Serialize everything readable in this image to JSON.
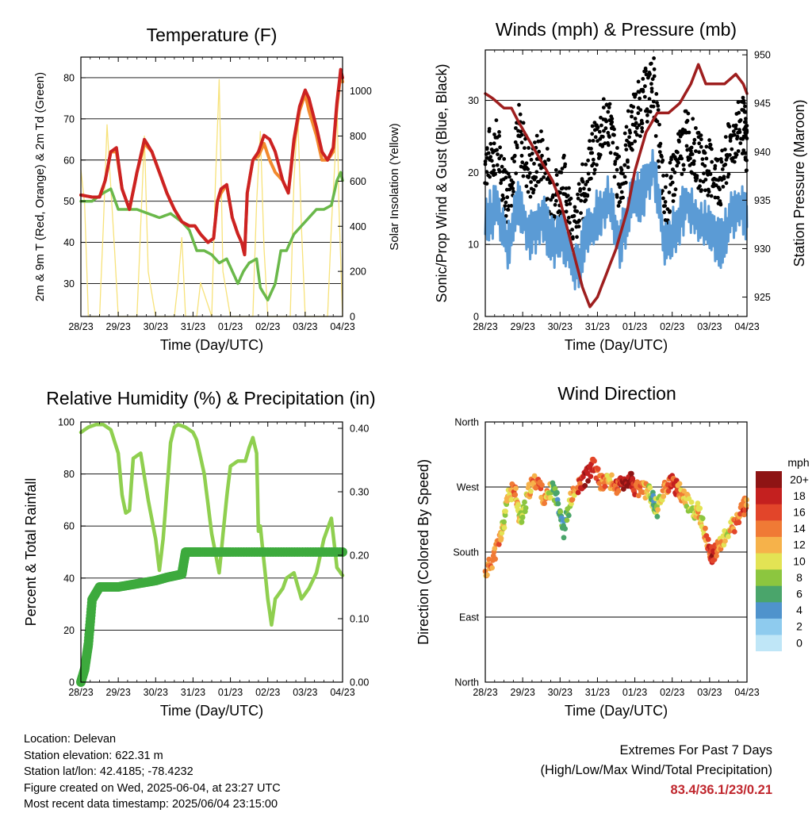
{
  "x_tick_labels": [
    "28/23",
    "29/23",
    "30/23",
    "31/23",
    "01/23",
    "02/23",
    "03/23",
    "04/23"
  ],
  "x_axis_title": "Time (Day/UTC)",
  "colors": {
    "temp_red": "#cc2222",
    "temp_orange": "#f28a2e",
    "dewpoint_green": "#6ab84a",
    "solar_yellow": "#f7e27a",
    "gust_black": "#000000",
    "wind_blue": "#5b9bd5",
    "pressure_maroon": "#9e1e1e",
    "rh_lightgreen": "#8fcf4f",
    "precip_green": "#3daa3d",
    "extremes_red": "#c0262d"
  },
  "panels": {
    "temperature": {
      "title": "Temperature (F)",
      "ylabel_left": "2m & 9m T (Red, Orange) & 2m Td (Green)",
      "ylabel_right": "Solar Insolation (Yellow)",
      "left_ticks": [
        "30",
        "40",
        "50",
        "60",
        "70",
        "80"
      ],
      "right_ticks": [
        "0",
        "200",
        "400",
        "600",
        "800",
        "1000"
      ]
    },
    "winds": {
      "title": "Winds (mph) & Pressure (mb)",
      "ylabel_left": "Sonic/Prop Wind & Gust (Blue, Black)",
      "ylabel_right": "Station Pressure (Maroon)",
      "left_ticks": [
        "0",
        "10",
        "20",
        "30"
      ],
      "right_ticks": [
        "925",
        "930",
        "935",
        "940",
        "945",
        "950"
      ]
    },
    "humidity": {
      "title": "Relative Humidity (%) & Precipitation (in)",
      "ylabel_left": "Percent & Total Rainfall",
      "left_ticks": [
        "0",
        "20",
        "40",
        "60",
        "80",
        "100"
      ],
      "right_ticks": [
        "0.00",
        "0.10",
        "0.20",
        "0.30",
        "0.40"
      ]
    },
    "direction": {
      "title": "Wind Direction",
      "ylabel_left": "Direction (Colored By Speed)",
      "left_ticks": [
        "North",
        "East",
        "South",
        "West",
        "North"
      ],
      "colorbar_title": "mph",
      "colorbar_labels": [
        "0",
        "2",
        "4",
        "6",
        "8",
        "10",
        "12",
        "14",
        "16",
        "18",
        "20+"
      ],
      "colorbar_colors": [
        "#bfe6f7",
        "#8ecbee",
        "#4f93cc",
        "#4aa56b",
        "#8cc63f",
        "#e3e354",
        "#f6b24a",
        "#f07a35",
        "#e2452a",
        "#c4201f",
        "#8e1414"
      ]
    }
  },
  "chart_data": [
    {
      "type": "line",
      "title": "Temperature (F)",
      "xlabel": "Time (Day/UTC)",
      "ylabel": "2m & 9m T (Red, Orange) & 2m Td (Green)",
      "y2label": "Solar Insolation (Yellow)",
      "ylim": [
        22,
        85
      ],
      "y2lim": [
        0,
        1150
      ],
      "xlim": [
        0,
        7
      ],
      "x_ticks": [
        "28/23",
        "29/23",
        "30/23",
        "31/23",
        "01/23",
        "02/23",
        "03/23",
        "04/23"
      ],
      "series": [
        {
          "x": [
            0,
            0.3,
            0.5,
            0.65,
            0.8,
            0.95,
            1.1,
            1.3,
            1.5,
            1.7,
            1.9,
            2.1,
            2.3,
            2.5,
            2.7,
            2.9,
            3.05,
            3.2,
            3.4,
            3.55,
            3.65,
            3.75,
            3.9,
            4.05,
            4.2,
            4.3,
            4.38,
            4.45,
            4.6,
            4.75,
            4.9,
            5.05,
            5.2,
            5.4,
            5.55,
            5.7,
            5.85,
            6.0,
            6.1,
            6.3,
            6.45,
            6.6,
            6.75,
            6.85,
            6.95,
            7.0
          ],
          "y": [
            51.5,
            51,
            51,
            55,
            62,
            63,
            53,
            48,
            57,
            65,
            62,
            57,
            52,
            48,
            45,
            44,
            44,
            42,
            40,
            41,
            50,
            53,
            54,
            46,
            42,
            40,
            37,
            52,
            60,
            62,
            66,
            65,
            62,
            55,
            52,
            65,
            73,
            77,
            75,
            68,
            62,
            60,
            63,
            74,
            82,
            80
          ]
        },
        {
          "x": [
            0,
            0.3,
            0.5,
            0.65,
            0.8,
            0.95,
            1.1,
            1.3,
            1.5,
            1.7,
            1.9,
            2.1,
            2.3,
            2.5,
            2.7,
            2.9,
            3.05,
            3.2,
            3.4,
            3.55,
            3.65,
            3.75,
            3.9,
            4.05,
            4.2,
            4.3,
            4.38,
            4.45,
            4.6,
            4.75,
            4.9,
            5.05,
            5.2,
            5.4,
            5.55,
            5.7,
            5.85,
            6.0,
            6.1,
            6.3,
            6.45,
            6.6,
            6.75,
            6.85,
            6.95,
            7.0
          ],
          "y": [
            51.5,
            51,
            51,
            55,
            62,
            62,
            53,
            48,
            57,
            64,
            62,
            57,
            52,
            48,
            45,
            44,
            44,
            42,
            40,
            41,
            50,
            52,
            54,
            46,
            42,
            40,
            37,
            52,
            60,
            61,
            64,
            60,
            57,
            55,
            52,
            64,
            72,
            76,
            72,
            66,
            60,
            60,
            62,
            73,
            81,
            79
          ]
        },
        {
          "x": [
            0,
            0.3,
            0.6,
            0.8,
            1.0,
            1.2,
            1.5,
            1.8,
            2.1,
            2.4,
            2.7,
            2.9,
            3.1,
            3.3,
            3.5,
            3.7,
            3.9,
            4.05,
            4.2,
            4.35,
            4.5,
            4.7,
            4.8,
            5.0,
            5.1,
            5.2,
            5.35,
            5.5,
            5.7,
            5.9,
            6.1,
            6.3,
            6.5,
            6.7,
            6.85,
            6.95,
            7.0
          ],
          "y": [
            50,
            50,
            52,
            53,
            48,
            48,
            48,
            47,
            46,
            47,
            45,
            43,
            38,
            38,
            37,
            35,
            36,
            33,
            30,
            33,
            35,
            36,
            29,
            26,
            28,
            30,
            38,
            38,
            42,
            44,
            46,
            48,
            48,
            49,
            55,
            57,
            55
          ]
        },
        {
          "x": [
            0,
            0.1,
            0.2,
            0.3,
            0.5,
            0.6,
            0.7,
            0.9,
            1.0,
            1.1,
            1.25,
            1.5,
            1.6,
            1.7,
            1.8,
            2.0,
            2.1,
            2.2,
            2.3,
            2.5,
            2.6,
            2.7,
            2.8,
            3.0,
            3.1,
            3.2,
            3.3,
            3.5,
            3.6,
            3.7,
            3.8,
            4.0,
            4.1,
            4.2,
            4.3,
            4.6,
            4.7,
            4.8,
            4.9,
            5.0,
            5.1,
            5.2,
            5.3,
            5.6,
            5.7,
            5.8,
            5.9,
            6.0,
            6.1,
            6.2,
            6.3,
            6.6,
            6.7,
            6.8,
            6.85,
            6.9,
            7.0
          ],
          "y": [
            650,
            500,
            0,
            0,
            0,
            400,
            850,
            300,
            0,
            0,
            0,
            0,
            400,
            800,
            200,
            0,
            0,
            0,
            0,
            0,
            150,
            350,
            0,
            0,
            0,
            150,
            100,
            0,
            600,
            1050,
            200,
            0,
            0,
            0,
            0,
            0,
            500,
            820,
            300,
            0,
            0,
            0,
            0,
            0,
            600,
            900,
            400,
            0,
            0,
            0,
            0,
            0,
            400,
            700,
            1000,
            500,
            0
          ]
        }
      ]
    },
    {
      "type": "line",
      "title": "Winds (mph) & Pressure (mb)",
      "xlabel": "Time (Day/UTC)",
      "ylabel": "Sonic/Prop Wind & Gust (Blue, Black)",
      "y2label": "Station Pressure (Maroon)",
      "ylim": [
        0,
        37
      ],
      "y2lim": [
        923,
        950.5
      ],
      "xlim": [
        0,
        7
      ],
      "x_ticks": [
        "28/23",
        "29/23",
        "30/23",
        "31/23",
        "01/23",
        "02/23",
        "03/23",
        "04/23"
      ],
      "series": [
        {
          "x": [
            0,
            0.3,
            0.6,
            0.9,
            1.2,
            1.5,
            1.8,
            2.1,
            2.4,
            2.7,
            3.0,
            3.3,
            3.6,
            3.9,
            4.2,
            4.5,
            4.8,
            5.1,
            5.4,
            5.7,
            6.0,
            6.3,
            6.6,
            6.9,
            7.0
          ],
          "y": [
            13,
            15,
            10,
            16,
            11,
            14,
            10,
            11,
            6,
            11,
            14,
            16,
            10,
            16,
            17,
            21,
            10,
            12,
            16,
            13,
            12,
            10,
            14,
            15,
            14
          ]
        },
        {
          "x": [
            0,
            0.3,
            0.6,
            0.9,
            1.2,
            1.5,
            1.8,
            2.1,
            2.4,
            2.7,
            3.0,
            3.3,
            3.6,
            3.9,
            4.2,
            4.5,
            4.8,
            5.1,
            5.4,
            5.7,
            6.0,
            6.3,
            6.6,
            6.9,
            7.0
          ],
          "y": [
            20,
            22,
            15,
            24,
            18,
            21,
            15,
            17,
            10,
            18,
            23,
            26,
            16,
            25,
            28,
            31,
            13,
            19,
            24,
            20,
            19,
            17,
            23,
            25,
            22
          ]
        },
        {
          "x": [
            0,
            0.2,
            0.5,
            0.7,
            0.9,
            1.2,
            1.5,
            1.8,
            2.0,
            2.2,
            2.4,
            2.6,
            2.8,
            3.0,
            3.2,
            3.5,
            3.8,
            4.0,
            4.3,
            4.6,
            4.9,
            5.2,
            5.5,
            5.7,
            5.9,
            6.1,
            6.4,
            6.7,
            6.9,
            7.0
          ],
          "y": [
            946,
            945.5,
            944.5,
            944.5,
            943,
            941,
            939,
            937,
            935,
            932,
            929,
            926,
            924,
            925,
            927,
            930,
            934,
            938,
            942,
            944,
            944,
            945,
            947,
            949,
            947,
            947,
            947,
            948,
            947,
            946
          ]
        }
      ]
    },
    {
      "type": "line",
      "title": "Relative Humidity (%) & Precipitation (in)",
      "xlabel": "Time (Day/UTC)",
      "ylabel": "Percent & Total Rainfall",
      "ylim": [
        0,
        100
      ],
      "y2lim": [
        0,
        0.41
      ],
      "xlim": [
        0,
        7
      ],
      "x_ticks": [
        "28/23",
        "29/23",
        "30/23",
        "31/23",
        "01/23",
        "02/23",
        "03/23",
        "04/23"
      ],
      "series": [
        {
          "x": [
            0,
            0.2,
            0.4,
            0.6,
            0.8,
            1.0,
            1.1,
            1.2,
            1.3,
            1.4,
            1.6,
            1.8,
            2.0,
            2.1,
            2.2,
            2.4,
            2.5,
            2.6,
            2.8,
            3.0,
            3.1,
            3.3,
            3.5,
            3.7,
            3.9,
            4.0,
            4.2,
            4.4,
            4.5,
            4.6,
            4.7,
            4.75
          ],
          "y": [
            96,
            98,
            99,
            99,
            97,
            88,
            72,
            65,
            66,
            86,
            88,
            70,
            55,
            43,
            55,
            92,
            98,
            99,
            98,
            96,
            93,
            80,
            57,
            42,
            71,
            83,
            85,
            85,
            90,
            94,
            88,
            58
          ]
        },
        {
          "x": [
            4.8,
            5.0,
            5.1,
            5.2,
            5.4,
            5.5,
            5.7,
            5.9,
            6.1,
            6.3,
            6.5,
            6.7,
            6.85,
            7.0
          ],
          "y": [
            60,
            32,
            22,
            32,
            36,
            40,
            42,
            32,
            36,
            42,
            55,
            63,
            44,
            41
          ]
        },
        {
          "x": [
            0,
            0.1,
            0.2,
            0.3,
            0.5,
            1.0,
            1.5,
            2.0,
            2.3,
            2.7,
            2.8,
            3.2,
            4.0,
            5.0,
            6.0,
            7.0
          ],
          "y": [
            0,
            0.02,
            0.06,
            0.13,
            0.15,
            0.15,
            0.155,
            0.16,
            0.165,
            0.17,
            0.205,
            0.205,
            0.205,
            0.205,
            0.205,
            0.205
          ]
        }
      ]
    },
    {
      "type": "scatter",
      "title": "Wind Direction",
      "xlabel": "Time (Day/UTC)",
      "ylabel": "Direction (Colored By Speed)",
      "ylim": [
        0,
        360
      ],
      "xlim": [
        0,
        7
      ],
      "y_ticks": [
        "North",
        "East",
        "South",
        "West",
        "North"
      ],
      "x_ticks": [
        "28/23",
        "29/23",
        "30/23",
        "31/23",
        "01/23",
        "02/23",
        "03/23",
        "04/23"
      ],
      "colorbar": {
        "title": "mph",
        "labels": [
          "0",
          "2",
          "4",
          "6",
          "8",
          "10",
          "12",
          "14",
          "16",
          "18",
          "20+"
        ]
      },
      "x": [
        0,
        0.2,
        0.4,
        0.5,
        0.6,
        0.8,
        0.9,
        1.0,
        1.2,
        1.4,
        1.6,
        1.8,
        2.0,
        2.1,
        2.3,
        2.5,
        2.7,
        2.9,
        3.1,
        3.3,
        3.5,
        3.7,
        3.9,
        4.0,
        4.2,
        4.4,
        4.5,
        4.6,
        4.8,
        5.0,
        5.2,
        5.4,
        5.6,
        5.7,
        5.8,
        6.0,
        6.1,
        6.3,
        6.5,
        6.7,
        6.9,
        7.0
      ],
      "y": [
        150,
        170,
        200,
        220,
        255,
        270,
        230,
        230,
        270,
        280,
        250,
        270,
        240,
        210,
        255,
        270,
        285,
        300,
        275,
        280,
        270,
        275,
        280,
        265,
        270,
        260,
        250,
        240,
        270,
        275,
        265,
        250,
        230,
        240,
        220,
        180,
        175,
        190,
        210,
        220,
        240,
        250
      ],
      "speed": [
        12,
        14,
        13,
        10,
        11,
        14,
        10,
        9,
        12,
        15,
        13,
        8,
        6,
        5,
        11,
        16,
        18,
        17,
        14,
        12,
        15,
        18,
        20,
        16,
        14,
        10,
        6,
        9,
        12,
        18,
        14,
        10,
        8,
        12,
        10,
        16,
        18,
        12,
        10,
        14,
        16,
        14
      ]
    }
  ],
  "footer": {
    "location": "Location: Delevan",
    "elevation": "Station elevation: 622.31 m",
    "latlon": "Station lat/lon: 42.4185; -78.4232",
    "created": "Figure created on Wed, 2025-06-04, at 23:27 UTC",
    "recent": "Most recent data timestamp: 2025/06/04 23:15:00",
    "extremes_title": "Extremes For Past 7 Days",
    "extremes_subtitle": "(High/Low/Max Wind/Total Precipitation)",
    "extremes_values": "83.4/36.1/23/0.21"
  }
}
